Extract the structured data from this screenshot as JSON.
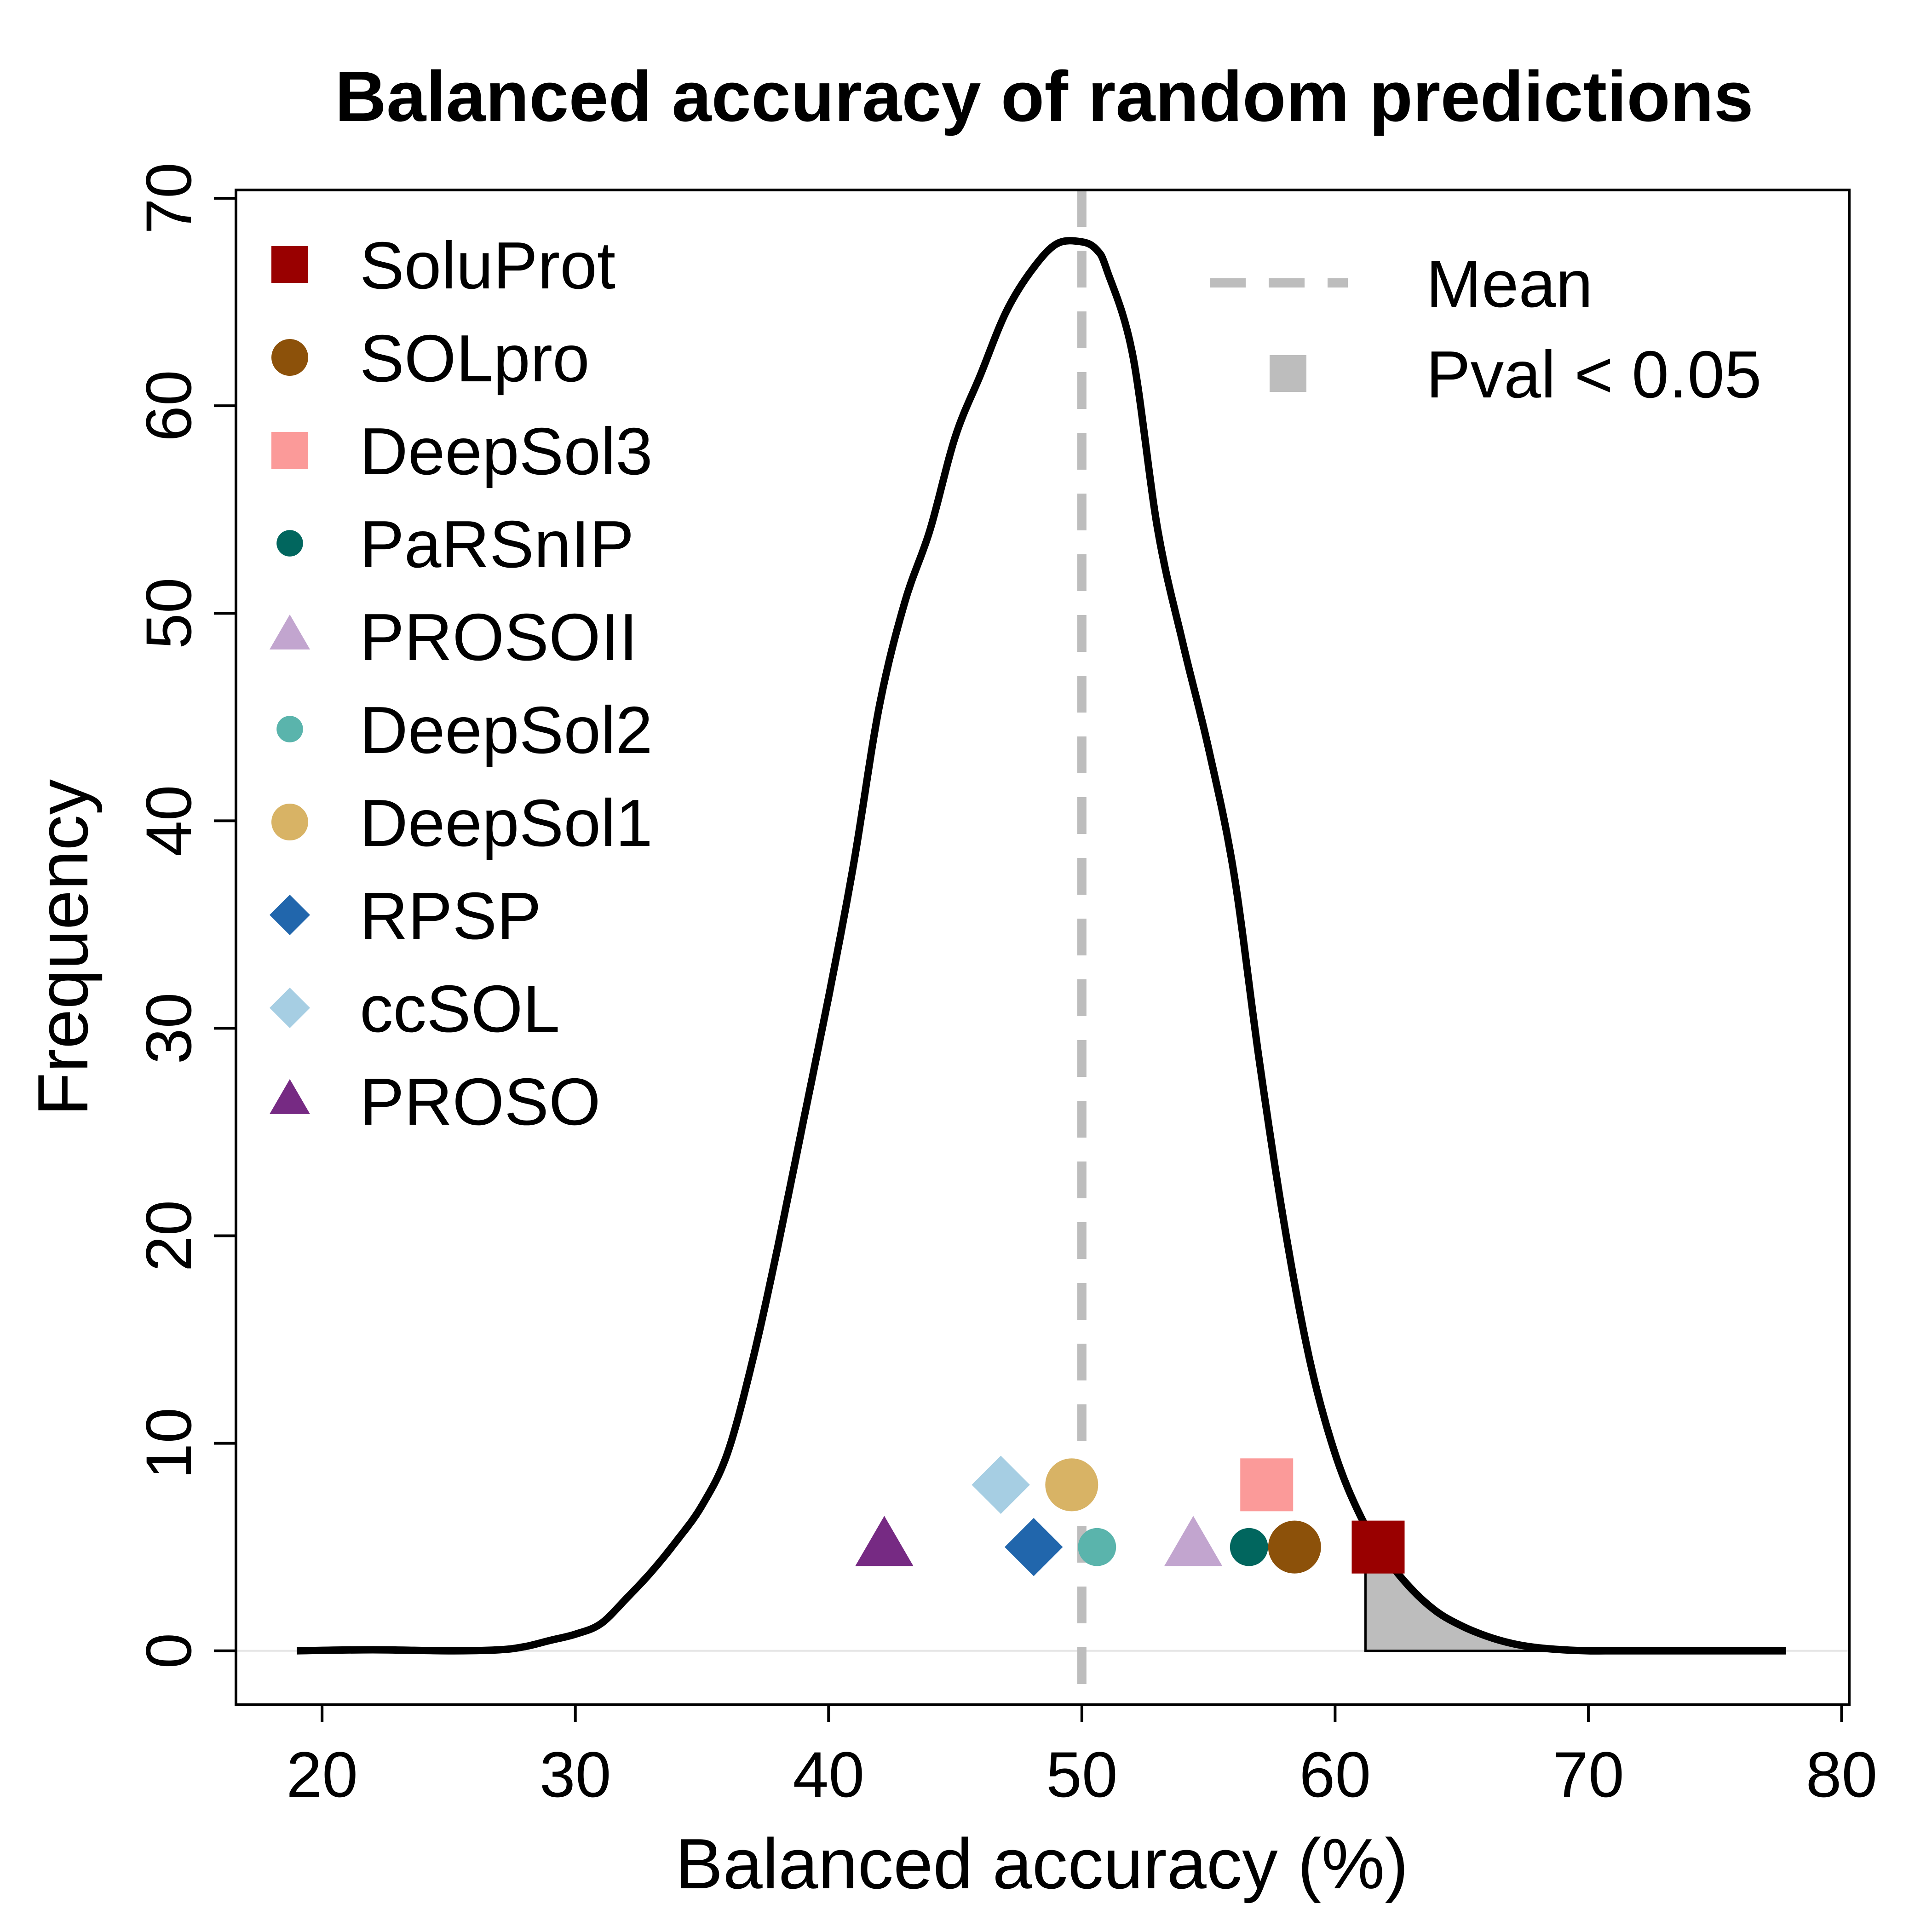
{
  "chart_data": {
    "type": "line",
    "title": "Balanced accuracy of random predictions",
    "xlabel": "Balanced accuracy (%)",
    "ylabel": "Frequency",
    "xlim": [
      16.6,
      80.3
    ],
    "ylim": [
      -2.6,
      70.4
    ],
    "xticks": [
      20,
      30,
      40,
      50,
      60,
      70,
      80
    ],
    "yticks": [
      0,
      10,
      20,
      30,
      40,
      50,
      60,
      70
    ],
    "grid": false,
    "mean": 50,
    "pval_threshold_x": 61.2,
    "density_curve": {
      "x": [
        19,
        22,
        25,
        27,
        28,
        29,
        30,
        31,
        32,
        33,
        34,
        35,
        36,
        37,
        38,
        39,
        40,
        41,
        42,
        43,
        44,
        45,
        46,
        47,
        48,
        49,
        50,
        50.6,
        51,
        52,
        53,
        54,
        55,
        56,
        57,
        58,
        59,
        60,
        61,
        62,
        63,
        64,
        65,
        66,
        67,
        68,
        69,
        70,
        71,
        72,
        73,
        74,
        75,
        76,
        77,
        77.8
      ],
      "y": [
        0,
        0.05,
        0,
        0.05,
        0.2,
        0.5,
        0.8,
        1.3,
        2.5,
        3.8,
        5.3,
        7,
        9.5,
        14,
        19.5,
        25.5,
        31.5,
        38,
        45.5,
        50.5,
        54,
        58.5,
        61.5,
        64.5,
        66.5,
        67.8,
        67.9,
        67.5,
        66.5,
        62.5,
        54,
        48.5,
        43.5,
        37.5,
        28.5,
        20.5,
        14,
        9.5,
        6.5,
        4.5,
        3,
        1.9,
        1.2,
        0.7,
        0.35,
        0.15,
        0.05,
        0,
        0,
        0,
        0,
        0,
        0,
        0,
        0,
        0
      ]
    },
    "series": [
      {
        "name": "SoluProt",
        "x": 61.7,
        "y": 5,
        "shape": "square",
        "color": "#990000"
      },
      {
        "name": "SOLpro",
        "x": 58.4,
        "y": 5,
        "shape": "circle",
        "color": "#8C510A"
      },
      {
        "name": "DeepSol3",
        "x": 57.3,
        "y": 8,
        "shape": "square",
        "color": "#FB9A99"
      },
      {
        "name": "PaRSnIP",
        "x": 56.6,
        "y": 5,
        "shape": "circle-small",
        "color": "#01665E"
      },
      {
        "name": "PROSOII",
        "x": 54.4,
        "y": 5,
        "shape": "triangle",
        "color": "#C2A5CF"
      },
      {
        "name": "DeepSol2",
        "x": 50.6,
        "y": 5,
        "shape": "circle-small",
        "color": "#5AB4AC"
      },
      {
        "name": "DeepSol1",
        "x": 49.6,
        "y": 8,
        "shape": "circle",
        "color": "#D8B365"
      },
      {
        "name": "RPSP",
        "x": 48.1,
        "y": 5,
        "shape": "diamond",
        "color": "#2166AC"
      },
      {
        "name": "ccSOL",
        "x": 46.8,
        "y": 8,
        "shape": "diamond",
        "color": "#A6CEE3"
      },
      {
        "name": "PROSO",
        "x": 42.2,
        "y": 5,
        "shape": "triangle",
        "color": "#762A83"
      }
    ],
    "legend_right": [
      {
        "label": "Mean",
        "shape": "dashed-line",
        "color": "#BDBDBD"
      },
      {
        "label": "Pval < 0.05",
        "shape": "square",
        "color": "#BDBDBD"
      }
    ],
    "legend_placement": "top-left and top-right"
  }
}
